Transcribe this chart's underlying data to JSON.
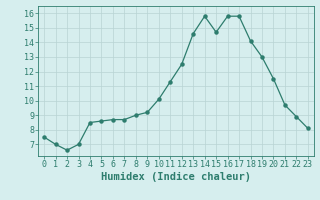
{
  "x": [
    0,
    1,
    2,
    3,
    4,
    5,
    6,
    7,
    8,
    9,
    10,
    11,
    12,
    13,
    14,
    15,
    16,
    17,
    18,
    19,
    20,
    21,
    22,
    23
  ],
  "y": [
    7.5,
    7.0,
    6.6,
    7.0,
    8.5,
    8.6,
    8.7,
    8.7,
    9.0,
    9.2,
    10.1,
    11.3,
    12.5,
    14.6,
    15.8,
    14.7,
    15.8,
    15.8,
    14.1,
    13.0,
    11.5,
    9.7,
    8.9,
    8.1
  ],
  "line_color": "#2e7d6e",
  "marker": "o",
  "marker_size": 2.2,
  "bg_color": "#d6eeee",
  "grid_color": "#b8d4d4",
  "xlabel": "Humidex (Indice chaleur)",
  "ylabel": "",
  "xlim": [
    -0.5,
    23.5
  ],
  "ylim": [
    6.2,
    16.5
  ],
  "yticks": [
    7,
    8,
    9,
    10,
    11,
    12,
    13,
    14,
    15,
    16
  ],
  "xticks": [
    0,
    1,
    2,
    3,
    4,
    5,
    6,
    7,
    8,
    9,
    10,
    11,
    12,
    13,
    14,
    15,
    16,
    17,
    18,
    19,
    20,
    21,
    22,
    23
  ],
  "tick_fontsize": 6.0,
  "xlabel_fontsize": 7.5,
  "linewidth": 0.9
}
